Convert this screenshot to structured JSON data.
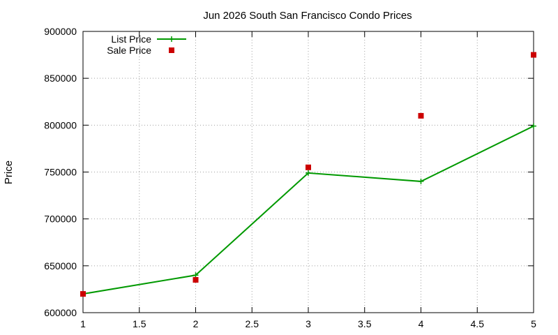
{
  "chart_data": {
    "type": "line",
    "title": "Jun 2026 South San Francisco Condo Prices",
    "xlabel": "",
    "ylabel": "Price",
    "xlim": [
      1,
      5
    ],
    "ylim": [
      600000,
      900000
    ],
    "x_ticks": [
      "1",
      "1.5",
      "2",
      "2.5",
      "3",
      "3.5",
      "4",
      "4.5",
      "5"
    ],
    "y_ticks": [
      "600000",
      "650000",
      "700000",
      "750000",
      "800000",
      "850000",
      "900000"
    ],
    "grid": true,
    "legend": "top-left",
    "series": [
      {
        "name": "List Price",
        "style": "line-with-plus-markers",
        "color": "#009900",
        "x": [
          1,
          2,
          3,
          4,
          5
        ],
        "values": [
          620000,
          640000,
          749000,
          740000,
          799000
        ]
      },
      {
        "name": "Sale Price",
        "style": "square-markers",
        "color": "#cc0000",
        "x": [
          1,
          2,
          3,
          4,
          5
        ],
        "values": [
          620000,
          635000,
          755000,
          810000,
          875000
        ]
      }
    ]
  }
}
